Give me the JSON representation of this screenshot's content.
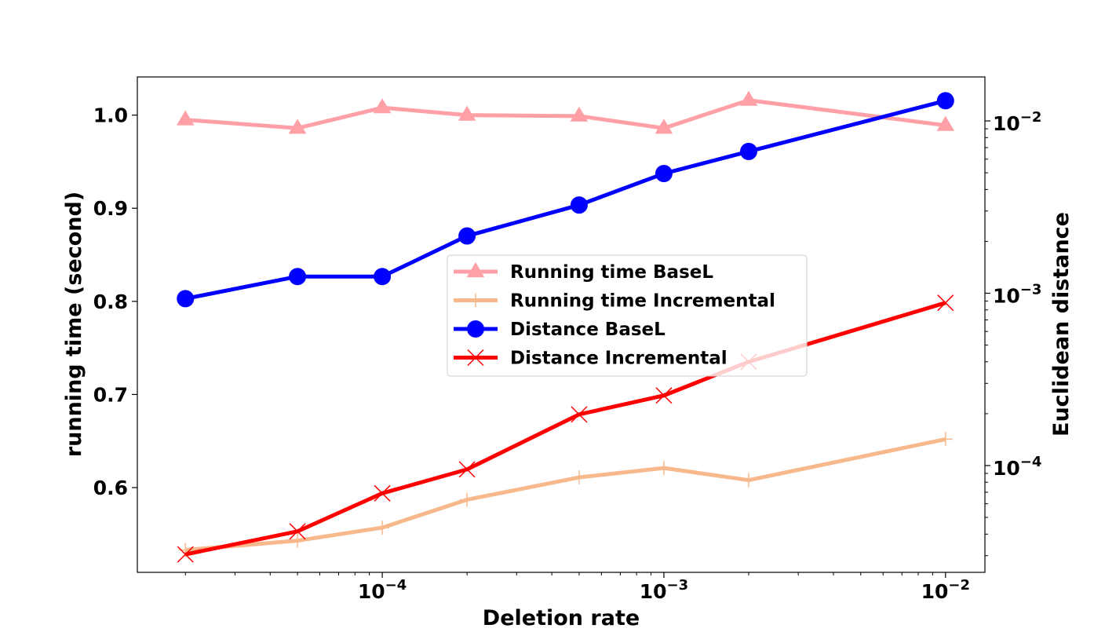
{
  "chart_data": {
    "type": "line",
    "title": "",
    "xlabel": "Deletion rate",
    "ylabel": "running time (second)",
    "y2label": "Euclidean distance",
    "x": [
      2e-05,
      5e-05,
      0.0001,
      0.0002,
      0.0005,
      0.001,
      0.002,
      0.01
    ],
    "xscale": "log",
    "xlim": [
      1.35e-05,
      0.0138
    ],
    "xticks": [
      {
        "value": 0.0001,
        "base": "10",
        "exp": "−4"
      },
      {
        "value": 0.001,
        "base": "10",
        "exp": "−3"
      },
      {
        "value": 0.01,
        "base": "10",
        "exp": "−2"
      }
    ],
    "ylim": [
      0.509,
      1.041
    ],
    "yticks": [
      "0.6",
      "0.7",
      "0.8",
      "0.9",
      "1.0"
    ],
    "y2scale": "log",
    "y2lim": [
      2.4e-05,
      0.018
    ],
    "y2ticks": [
      {
        "value": 0.0001,
        "base": "10",
        "exp": "−4"
      },
      {
        "value": 0.001,
        "base": "10",
        "exp": "−3"
      },
      {
        "value": 0.01,
        "base": "10",
        "exp": "−2"
      }
    ],
    "grid": false,
    "legend_position": "center",
    "series": [
      {
        "name": "Running time BaseL",
        "axis": "left",
        "color": "#ffa0a6",
        "marker": "triangle",
        "values": [
          0.995,
          0.986,
          1.008,
          1.0,
          0.999,
          0.986,
          1.016,
          0.989
        ]
      },
      {
        "name": "Running time Incremental",
        "axis": "left",
        "color": "#f7b98c",
        "marker": "plus",
        "values": [
          0.533,
          0.543,
          0.557,
          0.587,
          0.611,
          0.621,
          0.608,
          0.652
        ]
      },
      {
        "name": "Distance BaseL",
        "axis": "right",
        "color": "#0000ff",
        "marker": "circle",
        "values": [
          0.00093,
          0.00125,
          0.00125,
          0.00215,
          0.00325,
          0.00495,
          0.00665,
          0.0131
        ]
      },
      {
        "name": "Distance Incremental",
        "axis": "right",
        "color": "#ff0000",
        "marker": "x",
        "values": [
          3.05e-05,
          4.15e-05,
          6.9e-05,
          9.5e-05,
          0.000198,
          0.000255,
          0.0004,
          0.00088
        ]
      }
    ]
  }
}
